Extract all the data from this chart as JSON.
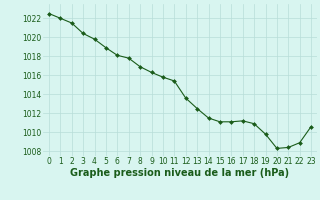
{
  "x": [
    0,
    1,
    2,
    3,
    4,
    5,
    6,
    7,
    8,
    9,
    10,
    11,
    12,
    13,
    14,
    15,
    16,
    17,
    18,
    19,
    20,
    21,
    22,
    23
  ],
  "y": [
    1022.5,
    1022.0,
    1021.5,
    1020.4,
    1019.8,
    1018.9,
    1018.1,
    1017.8,
    1016.9,
    1016.3,
    1015.8,
    1015.4,
    1013.6,
    1012.5,
    1011.5,
    1011.1,
    1011.1,
    1011.2,
    1010.9,
    1009.8,
    1008.3,
    1008.4,
    1008.9,
    1010.6
  ],
  "line_color": "#1a5c1a",
  "marker": "D",
  "marker_size": 2.0,
  "bg_color": "#d8f5f0",
  "grid_color": "#b8ddd8",
  "xlabel": "Graphe pression niveau de la mer (hPa)",
  "xlabel_fontsize": 7,
  "xlabel_color": "#1a5c1a",
  "xlabel_bold": true,
  "ylim": [
    1007.5,
    1023.5
  ],
  "xlim": [
    -0.5,
    23.5
  ],
  "yticks": [
    1008,
    1010,
    1012,
    1014,
    1016,
    1018,
    1020,
    1022
  ],
  "xtick_labels": [
    "0",
    "1",
    "2",
    "3",
    "4",
    "5",
    "6",
    "7",
    "8",
    "9",
    "10",
    "11",
    "12",
    "13",
    "14",
    "15",
    "16",
    "17",
    "18",
    "19",
    "20",
    "21",
    "22",
    "23"
  ],
  "tick_fontsize": 5.5,
  "tick_color": "#1a5c1a"
}
